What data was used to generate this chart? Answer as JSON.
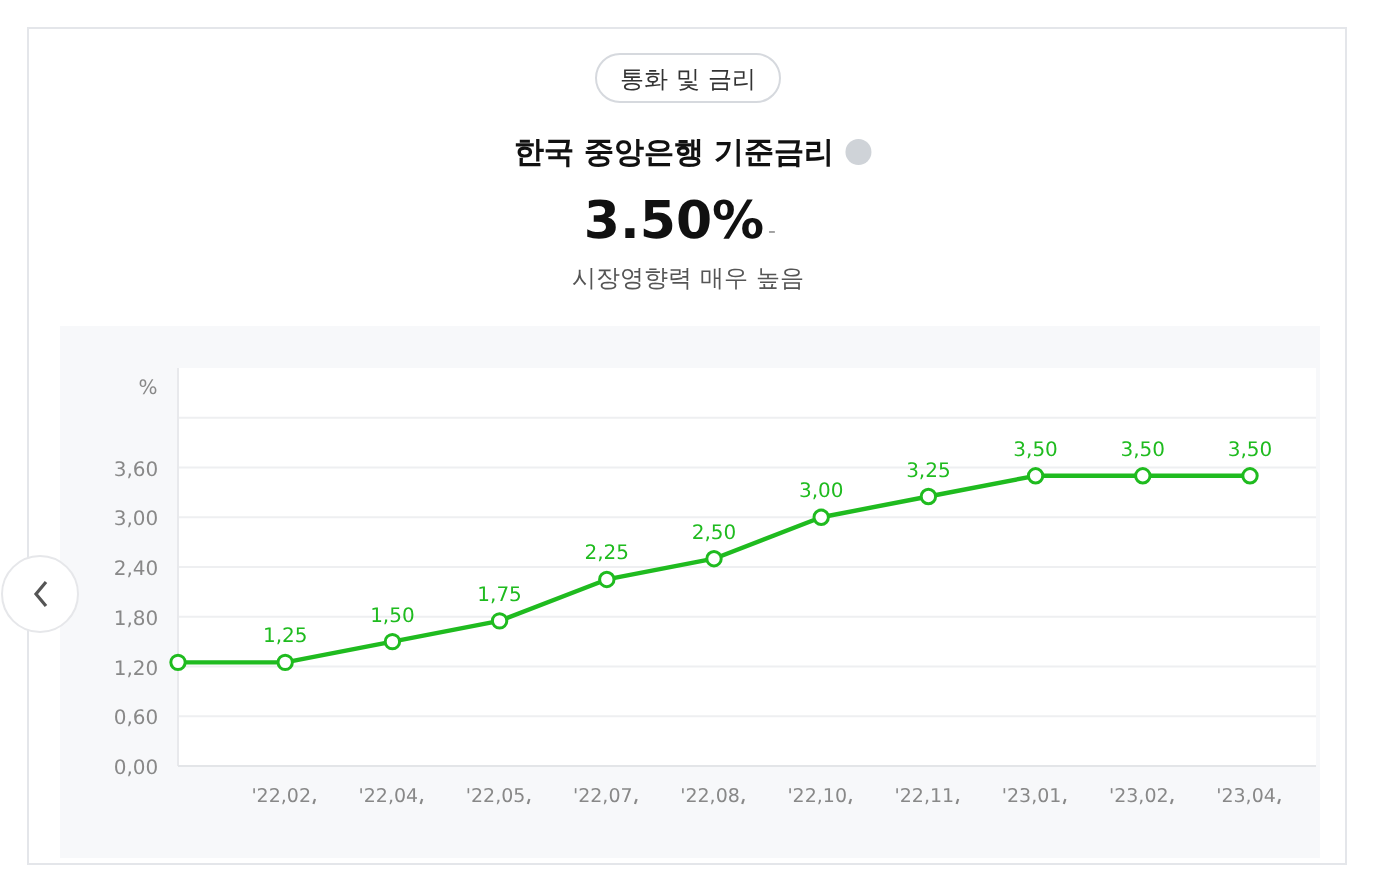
{
  "chart_data": {
    "type": "line",
    "title": "한국 중앙은행 기준금리",
    "subtitle": "통화 및 금리",
    "annotations": [
      "3.50%",
      "-",
      "시장영향력 매우 높음"
    ],
    "ylabel": "%",
    "categories": [
      null,
      "'22,02",
      "'22,04",
      "'22,05",
      "'22,07",
      "'22,08",
      "'22,10",
      "'22,11",
      "'23,01",
      "'23,02",
      "'23,04"
    ],
    "series": [
      {
        "color": "#1fbb1f",
        "values": [
          1.25,
          1.25,
          1.5,
          1.75,
          2.25,
          2.5,
          3.0,
          3.25,
          3.5,
          3.5,
          3.5
        ],
        "value_labels": [
          null,
          "1,25",
          "1,50",
          "1,75",
          "2,25",
          "2,50",
          "3,00",
          "3,25",
          "3,50",
          "3,50",
          "3,50"
        ]
      }
    ],
    "ylim": [
      0,
      4.8
    ],
    "yticks": [
      {
        "value": 0,
        "label": "0,00"
      },
      {
        "value": 0.6,
        "label": "0,60"
      },
      {
        "value": 1.2,
        "label": "1,20"
      },
      {
        "value": 1.8,
        "label": "1,80"
      },
      {
        "value": 2.4,
        "label": "2,40"
      },
      {
        "value": 3.0,
        "label": "3,00"
      },
      {
        "value": 3.6,
        "label": "3,60"
      },
      {
        "value": 4.2,
        "label": null
      }
    ],
    "grid": "y",
    "marker": "circle",
    "line_style": "solid"
  }
}
